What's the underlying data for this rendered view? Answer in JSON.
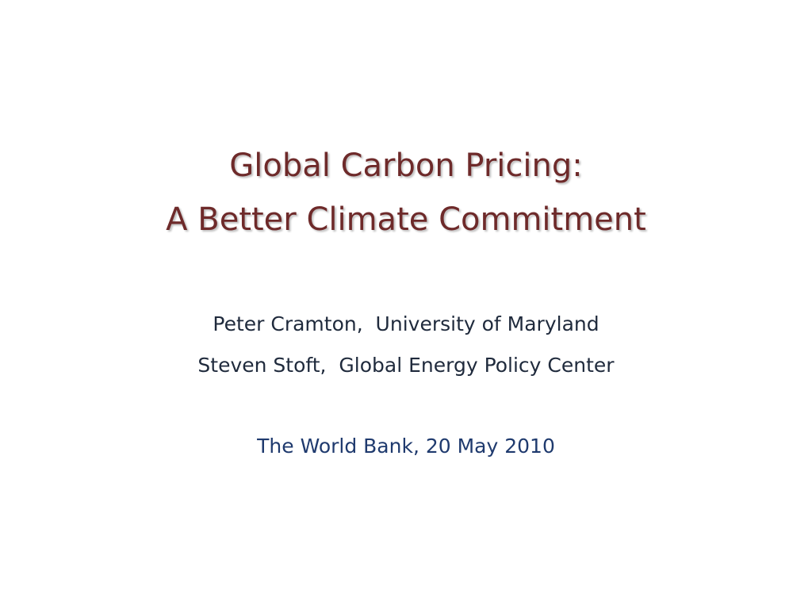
{
  "title": {
    "lines": [
      "Global Carbon Pricing:",
      "A Better Climate Commitment"
    ]
  },
  "authors": [
    "Peter Cramton,  University of Maryland",
    "Steven Stoft,  Global Energy Policy Center"
  ],
  "event": "The World Bank, 20 May 2010"
}
